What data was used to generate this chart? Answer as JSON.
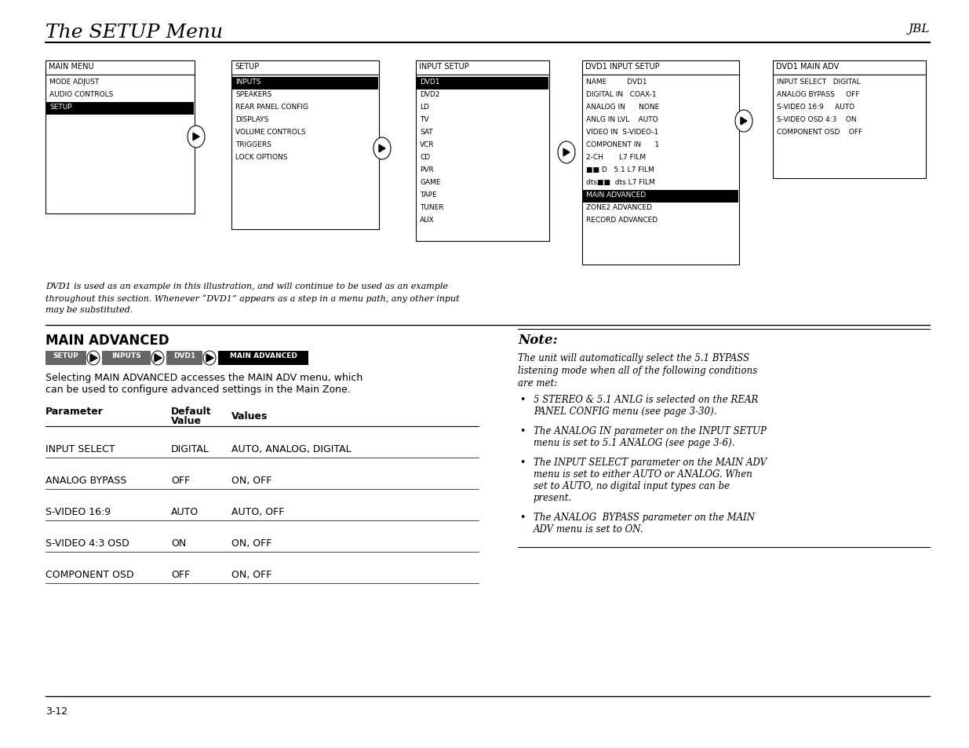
{
  "page_bg": "#ffffff",
  "title_text": "The SETUP Menu",
  "title_right": "JBL",
  "menu_boxes": [
    {
      "label": "MAIN MENU",
      "items": [
        "MODE ADJUST",
        "AUDIO CONTROLS",
        "SETUP"
      ],
      "highlighted": [
        "SETUP"
      ]
    },
    {
      "label": "SETUP",
      "items": [
        "INPUTS",
        "SPEAKERS",
        "REAR PANEL CONFIG",
        "DISPLAYS",
        "VOLUME CONTROLS",
        "TRIGGERS",
        "LOCK OPTIONS"
      ],
      "highlighted": [
        "INPUTS"
      ]
    },
    {
      "label": "INPUT SETUP",
      "items": [
        "DVD1",
        "DVD2",
        "LD",
        "TV",
        "SAT",
        "VCR",
        "CD",
        "PVR",
        "GAME",
        "TAPE",
        "TUNER",
        "AUX"
      ],
      "highlighted": [
        "DVD1"
      ]
    },
    {
      "label": "DVD1 INPUT SETUP",
      "items": [
        "NAME         DVD1",
        "DIGITAL IN   COAX-1",
        "ANALOG IN      NONE",
        "ANLG IN LVL    AUTO",
        "VIDEO IN  S-VIDEO-1",
        "COMPONENT IN      1",
        "2-CH       L7 FILM",
        "■■ D   5.1 L7 FILM",
        "dts■■  dts L7 FILM",
        "MAIN ADVANCED",
        "ZONE2 ADVANCED",
        "RECORD ADVANCED"
      ],
      "highlighted": [
        "MAIN ADVANCED"
      ]
    },
    {
      "label": "DVD1 MAIN ADV",
      "items": [
        "INPUT SELECT   DIGITAL",
        "ANALOG BYPASS     OFF",
        "S-VIDEO 16:9     AUTO",
        "S-VIDEO OSD 4:3    ON",
        "COMPONENT OSD    OFF"
      ],
      "highlighted": []
    }
  ],
  "italic_note1": "DVD1 is used as an example in this illustration, and will continue to be used as an example",
  "italic_note2": "throughout this section. Whenever “DVD1” appears as a step in a menu path, any other input",
  "italic_note3": "may be substituted.",
  "section_title": "MAIN ADVANCED",
  "breadcrumb_items": [
    "SETUP",
    "INPUTS",
    "DVD1",
    "MAIN ADVANCED"
  ],
  "body_text1": "Selecting MAIN ADVANCED accesses the MAIN ADV menu, which",
  "body_text2": "can be used to configure advanced settings in the Main Zone.",
  "table_rows": [
    [
      "INPUT SELECT",
      "DIGITAL",
      "AUTO, ANALOG, DIGITAL"
    ],
    [
      "ANALOG BYPASS",
      "OFF",
      "ON, OFF"
    ],
    [
      "S-VIDEO 16:9",
      "AUTO",
      "AUTO, OFF"
    ],
    [
      "S-VIDEO 4:3 OSD",
      "ON",
      "ON, OFF"
    ],
    [
      "COMPONENT OSD",
      "OFF",
      "ON, OFF"
    ]
  ],
  "note_title": "Note:",
  "note_body": "The unit will automatically select the 5.1 BYPASS\nlistening mode when all of the following conditions\nare met:",
  "bullet_points": [
    "5 STEREO & 5.1 ANLG is selected on the REAR\nPANEL CONFIG menu (see page 3-30).",
    "The ANALOG IN parameter on the INPUT SETUP\nmenu is set to 5.1 ANALOG (see page 3-6).",
    "The INPUT SELECT parameter on the MAIN ADV\nmenu is set to either AUTO or ANALOG. When\nset to AUTO, no digital input types can be\npresent.",
    "The ANALOG  BYPASS parameter on the MAIN\nADV menu is set to ON."
  ],
  "page_number": "3-12"
}
